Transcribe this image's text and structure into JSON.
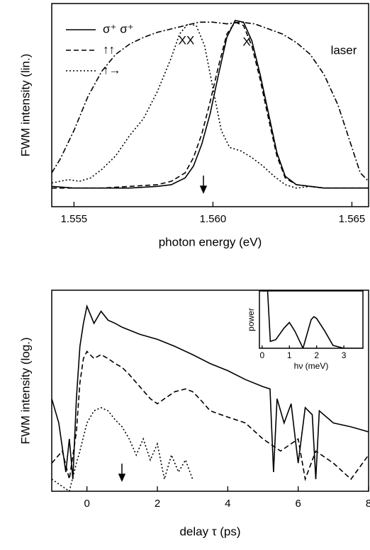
{
  "chart_data": [
    {
      "type": "line",
      "x_label": "photon energy (eV)",
      "y_label": "FWM intensity (lin.)",
      "xlim": [
        1.5542,
        1.5656
      ],
      "xticks": [
        1.555,
        {
          "value": 1.56,
          "label": "1.560"
        },
        1.565
      ],
      "ylim": [
        -0.1,
        1.1
      ],
      "legend": "upper left",
      "annotations": [
        "XX",
        "X"
      ],
      "series": [
        {
          "name": "σ⁺ σ⁺",
          "color": "#000000",
          "dash": "solid",
          "x": [
            1.5542,
            1.555,
            1.556,
            1.557,
            1.558,
            1.5585,
            1.559,
            1.5593,
            1.5596,
            1.5599,
            1.5602,
            1.5605,
            1.5608,
            1.5611,
            1.5614,
            1.5617,
            1.562,
            1.5623,
            1.5626,
            1.563,
            1.564,
            1.565,
            1.5656
          ],
          "values": [
            0.02,
            0.01,
            0.01,
            0.01,
            0.02,
            0.03,
            0.07,
            0.14,
            0.27,
            0.45,
            0.68,
            0.9,
            1.0,
            0.99,
            0.88,
            0.68,
            0.45,
            0.22,
            0.08,
            0.03,
            0.01,
            0.01,
            0.01
          ]
        },
        {
          "name": "↑↑",
          "color": "#000000",
          "dash": "dashed",
          "x": [
            1.5542,
            1.555,
            1.556,
            1.557,
            1.558,
            1.5585,
            1.559,
            1.5593,
            1.5596,
            1.5599,
            1.5602,
            1.5605,
            1.5608,
            1.5611,
            1.5614,
            1.5617,
            1.562,
            1.5623,
            1.5626,
            1.563,
            1.564,
            1.565,
            1.5656
          ],
          "values": [
            0.01,
            0.01,
            0.01,
            0.02,
            0.03,
            0.05,
            0.1,
            0.19,
            0.33,
            0.52,
            0.73,
            0.92,
            0.99,
            0.97,
            0.85,
            0.65,
            0.42,
            0.2,
            0.07,
            0.03,
            0.01,
            0.01,
            0.01
          ]
        },
        {
          "name": "↑→",
          "color": "#000000",
          "dash": "dotted",
          "x": [
            1.5542,
            1.5548,
            1.5552,
            1.5556,
            1.556,
            1.5565,
            1.557,
            1.5575,
            1.558,
            1.5585,
            1.5588,
            1.5591,
            1.5594,
            1.5597,
            1.56,
            1.5603,
            1.5606,
            1.561,
            1.5614,
            1.5618,
            1.5622,
            1.5626,
            1.563,
            1.5635,
            1.564,
            1.565,
            1.5656
          ],
          "values": [
            0.04,
            0.06,
            0.05,
            0.07,
            0.12,
            0.2,
            0.32,
            0.42,
            0.58,
            0.78,
            0.92,
            0.98,
            0.97,
            0.85,
            0.6,
            0.35,
            0.25,
            0.23,
            0.19,
            0.14,
            0.08,
            0.03,
            0.01,
            0.02,
            0.01,
            0.01,
            0.01
          ]
        },
        {
          "name": "laser",
          "color": "#000000",
          "dash": "dashdot",
          "legend": false,
          "x": [
            1.5542,
            1.5545,
            1.555,
            1.5555,
            1.556,
            1.5565,
            1.557,
            1.5575,
            1.558,
            1.5585,
            1.559,
            1.5595,
            1.56,
            1.5605,
            1.561,
            1.5615,
            1.562,
            1.5625,
            1.563,
            1.5635,
            1.564,
            1.5645,
            1.565,
            1.5653,
            1.5656
          ],
          "values": [
            0.1,
            0.18,
            0.35,
            0.55,
            0.7,
            0.8,
            0.86,
            0.9,
            0.93,
            0.95,
            0.97,
            0.99,
            0.99,
            0.98,
            0.99,
            0.98,
            0.95,
            0.92,
            0.87,
            0.8,
            0.68,
            0.5,
            0.25,
            0.1,
            0.05
          ]
        }
      ]
    },
    {
      "type": "line",
      "x_label": "delay τ (ps)",
      "y_label": "FWM intensity (log.)",
      "xlim": [
        -1,
        8
      ],
      "xticks": [
        0,
        2,
        4,
        6,
        8
      ],
      "ylim": [
        0.0001,
        10
      ],
      "log_scale": true,
      "series": [
        {
          "color": "#000000",
          "dash": "solid",
          "x": [
            -1,
            -0.8,
            -0.6,
            -0.5,
            -0.4,
            -0.3,
            -0.2,
            -0.1,
            0,
            0.2,
            0.4,
            0.6,
            0.8,
            1,
            1.5,
            2,
            2.5,
            3,
            3.5,
            4,
            4.5,
            5,
            5.2,
            5.3,
            5.4,
            5.6,
            5.8,
            6,
            6.2,
            6.4,
            6.5,
            6.6,
            7,
            7.5,
            8
          ],
          "values": [
            0.02,
            0.005,
            0.0003,
            0.002,
            0.0002,
            0.02,
            0.4,
            1.5,
            4,
            1.5,
            3,
            1.8,
            1.5,
            1.2,
            0.8,
            0.6,
            0.4,
            0.25,
            0.15,
            0.1,
            0.06,
            0.04,
            0.035,
            0.0003,
            0.02,
            0.005,
            0.015,
            0.0005,
            0.012,
            0.008,
            0.0002,
            0.01,
            0.005,
            0.004,
            0.003
          ]
        },
        {
          "color": "#000000",
          "dash": "dashed",
          "x": [
            -1,
            -0.7,
            -0.5,
            -0.3,
            -0.2,
            -0.1,
            0,
            0.2,
            0.4,
            0.6,
            0.8,
            1,
            1.2,
            1.5,
            1.8,
            2,
            2.2,
            2.5,
            2.8,
            3,
            3.2,
            3.5,
            4,
            4.5,
            5,
            5.5,
            6,
            6.2,
            6.5,
            7,
            7.5,
            8
          ],
          "values": [
            0.0005,
            0.001,
            0.0002,
            0.003,
            0.05,
            0.2,
            0.3,
            0.2,
            0.25,
            0.2,
            0.15,
            0.12,
            0.08,
            0.04,
            0.02,
            0.015,
            0.02,
            0.03,
            0.035,
            0.03,
            0.02,
            0.01,
            0.007,
            0.005,
            0.002,
            0.001,
            0.002,
            0.0002,
            0.001,
            0.0005,
            0.0002,
            0.0008
          ]
        },
        {
          "color": "#000000",
          "dash": "dotted",
          "x": [
            -1,
            -0.5,
            -0.3,
            -0.2,
            0,
            0.2,
            0.4,
            0.6,
            0.8,
            1,
            1.2,
            1.4,
            1.6,
            1.8,
            2,
            2.2,
            2.4,
            2.6,
            2.8,
            3
          ],
          "values": [
            0.0002,
            0.0001,
            0.0005,
            0.001,
            0.005,
            0.01,
            0.012,
            0.01,
            0.006,
            0.004,
            0.002,
            0.0008,
            0.002,
            0.0006,
            0.0015,
            0.0002,
            0.0008,
            0.0003,
            0.0006,
            0.0002
          ]
        }
      ]
    },
    {
      "type": "line",
      "x_label": "hν (meV)",
      "y_label": "power",
      "xlim": [
        -0.1,
        3.7
      ],
      "xticks": [
        0,
        1,
        2,
        3
      ],
      "ylim": [
        0,
        1
      ],
      "series": [
        {
          "color": "#000000",
          "dash": "solid",
          "x": [
            0,
            0.2,
            0.3,
            0.5,
            0.8,
            1.0,
            1.2,
            1.5,
            1.8,
            1.9,
            2.0,
            2.3,
            2.6,
            3.0,
            3.7
          ],
          "values": [
            1.0,
            1.0,
            0.12,
            0.15,
            0.35,
            0.45,
            0.3,
            0.0,
            0.5,
            0.55,
            0.52,
            0.3,
            0.05,
            0.0,
            0.0
          ]
        }
      ]
    }
  ]
}
